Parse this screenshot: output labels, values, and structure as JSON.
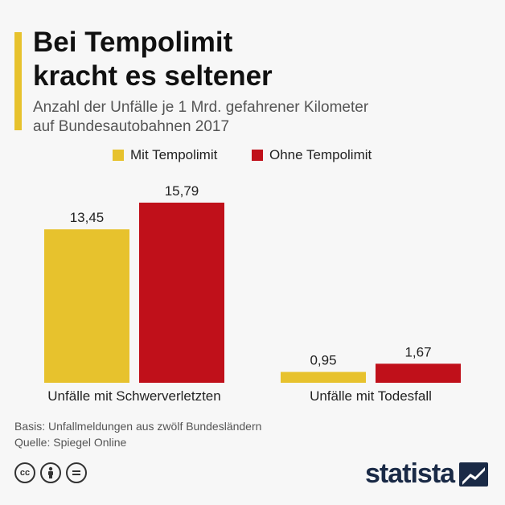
{
  "header": {
    "title_line1": "Bei Tempolimit",
    "title_line2": "kracht es seltener",
    "subtitle_line1": "Anzahl der Unfälle je 1 Mrd. gefahrener Kilometer",
    "subtitle_line2": "auf Bundesautobahnen 2017"
  },
  "chart_data": {
    "type": "bar",
    "categories": [
      "Unfälle mit Schwerverletzten",
      "Unfälle mit Todesfall"
    ],
    "series": [
      {
        "name": "Mit Tempolimit",
        "values": [
          13.45,
          0.95
        ],
        "labels": [
          "13,45",
          "0,95"
        ],
        "color": "#e7c22d"
      },
      {
        "name": "Ohne Tempolimit",
        "values": [
          15.79,
          1.67
        ],
        "labels": [
          "15,79",
          "1,67"
        ],
        "color": "#c0101a"
      }
    ],
    "legend": "top",
    "grid": false
  },
  "footer": {
    "basis": "Basis: Unfallmeldungen aus zwölf Bundesländern",
    "source": "Quelle: Spiegel Online"
  },
  "license_icons": [
    "cc-icon",
    "attribution-icon",
    "no-derivatives-icon"
  ],
  "brand": {
    "name": "statista",
    "color": "#1a2a46"
  }
}
